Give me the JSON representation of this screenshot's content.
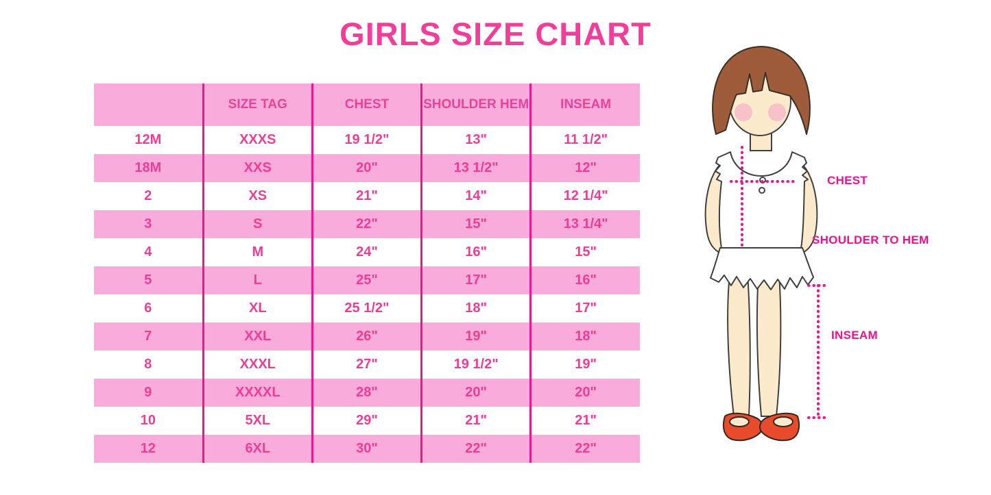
{
  "page": {
    "title": "GIRLS SIZE CHART"
  },
  "colors": {
    "title_pink": "#F13E9B",
    "row_pink": "#F9ACDB",
    "cell_text_pink": "#EE3D96",
    "divider_magenta": "#E9188C",
    "label_magenta": "#F0108F",
    "dotted_line_pink": "#F0138F",
    "hair_brown": "#9E5C3A",
    "skin": "#FBEACB",
    "blush": "#F5B7C8",
    "shoe_red": "#E94B2D"
  },
  "table": {
    "headers": [
      "",
      "SIZE TAG",
      "CHEST",
      "SHOULDER HEM",
      "INSEAM"
    ],
    "rows": [
      [
        "12M",
        "XXXS",
        "19 1/2\"",
        "13\"",
        "11 1/2\""
      ],
      [
        "18M",
        "XXS",
        "20\"",
        "13 1/2\"",
        "12\""
      ],
      [
        "2",
        "XS",
        "21\"",
        "14\"",
        "12 1/4\""
      ],
      [
        "3",
        "S",
        "22\"",
        "15\"",
        "13 1/4\""
      ],
      [
        "4",
        "M",
        "24\"",
        "16\"",
        "15\""
      ],
      [
        "5",
        "L",
        "25\"",
        "17\"",
        "16\""
      ],
      [
        "6",
        "XL",
        "25 1/2\"",
        "18\"",
        "17\""
      ],
      [
        "7",
        "XXL",
        "26\"",
        "19\"",
        "18\""
      ],
      [
        "8",
        "XXXL",
        "27\"",
        "19 1/2\"",
        "19\""
      ],
      [
        "9",
        "XXXXL",
        "28\"",
        "20\"",
        "20\""
      ],
      [
        "10",
        "5XL",
        "29\"",
        "21\"",
        "21\""
      ],
      [
        "12",
        "6XL",
        "30\"",
        "22\"",
        "22\""
      ]
    ]
  },
  "diagram": {
    "labels": {
      "chest": "CHEST",
      "shoulder_to_hem": "SHOULDER TO HEM",
      "inseam": "INSEAM"
    }
  }
}
